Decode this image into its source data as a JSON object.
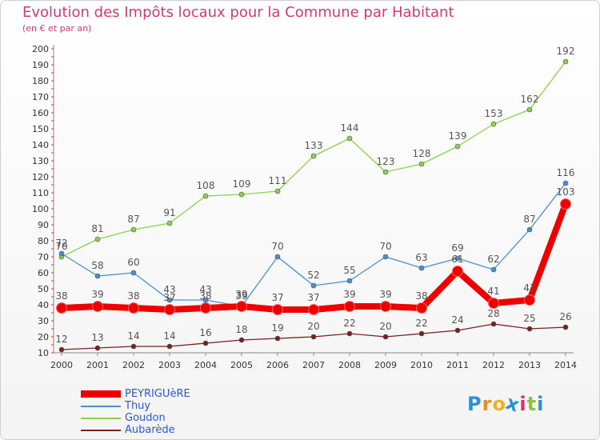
{
  "chart_data": {
    "type": "line",
    "title": "Evolution des Impôts locaux pour la Commune par Habitant",
    "subtitle": "(en € et par an)",
    "x": [
      "2000",
      "2001",
      "2002",
      "2003",
      "2004",
      "2005",
      "2006",
      "2007",
      "2008",
      "2009",
      "2010",
      "2011",
      "2012",
      "2013",
      "2014"
    ],
    "ylim": [
      10,
      200
    ],
    "yticks": [
      10,
      20,
      30,
      40,
      50,
      60,
      70,
      80,
      90,
      100,
      110,
      120,
      130,
      140,
      150,
      160,
      170,
      180,
      190,
      200
    ],
    "grid": false,
    "legend_position": "bottom-left",
    "series": [
      {
        "name": "Goudon",
        "color": "#8cd14b",
        "values": [
          70,
          81,
          87,
          91,
          108,
          109,
          111,
          133,
          144,
          123,
          128,
          139,
          153,
          162,
          192
        ],
        "labels": [
          70,
          81,
          87,
          91,
          108,
          109,
          111,
          133,
          144,
          123,
          128,
          139,
          153,
          162,
          192
        ]
      },
      {
        "name": "Thuy",
        "color": "#4a8fd0",
        "values": [
          72,
          58,
          60,
          43,
          43,
          39,
          70,
          52,
          55,
          70,
          63,
          69,
          62,
          87,
          116
        ],
        "labels": [
          72,
          58,
          60,
          43,
          43,
          39,
          70,
          52,
          55,
          70,
          63,
          69,
          62,
          87,
          116
        ]
      },
      {
        "name": "Aubarède",
        "color": "#7a1f1f",
        "values": [
          12,
          13,
          14,
          14,
          16,
          18,
          19,
          20,
          22,
          20,
          22,
          24,
          28,
          25,
          26
        ],
        "labels": [
          12,
          13,
          14,
          14,
          16,
          18,
          19,
          20,
          22,
          20,
          22,
          24,
          28,
          25,
          26
        ]
      },
      {
        "name": "PEYRIGUèRE",
        "color": "#ee0000",
        "values": [
          38,
          39,
          38,
          37,
          38,
          39,
          37,
          37,
          39,
          39,
          38,
          61,
          41,
          43,
          103
        ],
        "labels": [
          38,
          39,
          38,
          37,
          38,
          39,
          37,
          37,
          39,
          39,
          38,
          61,
          41,
          43,
          103
        ]
      }
    ]
  },
  "legend": [
    "PEYRIGUèRE",
    "Thuy",
    "Goudon",
    "Aubarède"
  ],
  "logo": {
    "letters": [
      "P",
      "r",
      "o",
      "x",
      "i",
      "t",
      "i"
    ],
    "colors": [
      "#2e8fd6",
      "#f08a1c",
      "#f0b21c",
      "#2e8fd6",
      "#d62e6a",
      "#8cc43c",
      "#2e8fd6"
    ]
  }
}
